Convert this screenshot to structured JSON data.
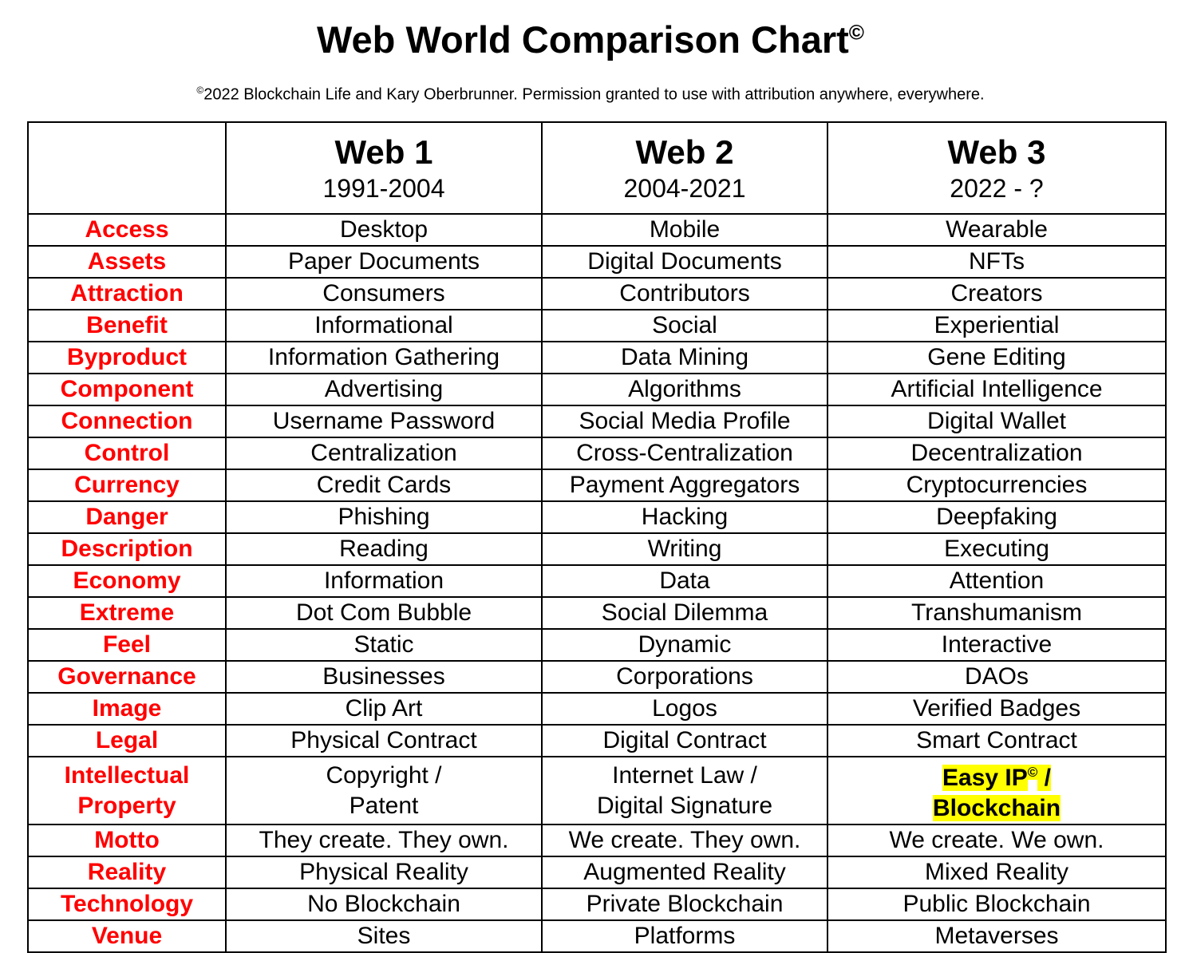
{
  "title": [
    {
      "text": "Web World Comparison Chart"
    },
    {
      "text": "©",
      "sup": true
    }
  ],
  "subtitle": [
    {
      "text": "©",
      "sup": true
    },
    {
      "text": "2022 Blockchain Life and Kary Oberbrunner. Permission granted to use with attribution anywhere, everywhere."
    }
  ],
  "table": {
    "columns": [
      {
        "name": "Web 1",
        "years": "1991-2004"
      },
      {
        "name": "Web 2",
        "years": "2004-2021"
      },
      {
        "name": "Web 3",
        "years": "2022 - ?"
      }
    ],
    "label_color": "#ff0000",
    "rows": [
      {
        "label": "Access",
        "cells": [
          "Desktop",
          "Mobile",
          "Wearable"
        ]
      },
      {
        "label": "Assets",
        "cells": [
          "Paper Documents",
          "Digital Documents",
          "NFTs"
        ]
      },
      {
        "label": "Attraction",
        "cells": [
          "Consumers",
          "Contributors",
          "Creators"
        ]
      },
      {
        "label": "Benefit",
        "cells": [
          "Informational",
          "Social",
          "Experiential"
        ]
      },
      {
        "label": "Byproduct",
        "cells": [
          "Information Gathering",
          "Data Mining",
          "Gene Editing"
        ]
      },
      {
        "label": "Component",
        "cells": [
          "Advertising",
          "Algorithms",
          "Artificial Intelligence"
        ]
      },
      {
        "label": "Connection",
        "cells": [
          "Username Password",
          "Social Media Profile",
          "Digital Wallet"
        ]
      },
      {
        "label": "Control",
        "cells": [
          "Centralization",
          "Cross-Centralization",
          "Decentralization"
        ]
      },
      {
        "label": "Currency",
        "cells": [
          "Credit Cards",
          "Payment Aggregators",
          "Cryptocurrencies"
        ]
      },
      {
        "label": "Danger",
        "cells": [
          "Phishing",
          "Hacking",
          "Deepfaking"
        ]
      },
      {
        "label": "Description",
        "cells": [
          "Reading",
          "Writing",
          "Executing"
        ]
      },
      {
        "label": "Economy",
        "cells": [
          "Information",
          "Data",
          "Attention"
        ]
      },
      {
        "label": "Extreme",
        "cells": [
          "Dot Com Bubble",
          "Social Dilemma",
          "Transhumanism"
        ]
      },
      {
        "label": "Feel",
        "cells": [
          "Static",
          "Dynamic",
          "Interactive"
        ]
      },
      {
        "label": "Governance",
        "cells": [
          "Businesses",
          "Corporations",
          "DAOs"
        ]
      },
      {
        "label": "Image",
        "cells": [
          "Clip Art",
          "Logos",
          "Verified Badges"
        ]
      },
      {
        "label": "Legal",
        "cells": [
          "Physical Contract",
          "Digital Contract",
          "Smart Contract"
        ]
      },
      {
        "label": {
          "lines": [
            "Intellectual",
            "Property"
          ]
        },
        "cells": [
          {
            "lines": [
              "Copyright /",
              "Patent"
            ]
          },
          {
            "lines": [
              "Internet Law /",
              "Digital Signature"
            ]
          },
          {
            "lines": [
              [
                {
                  "text": "Easy IP"
                },
                {
                  "text": "©",
                  "sup": true
                },
                {
                  "text": " /"
                }
              ],
              "Blockchain"
            ],
            "highlight": "#ffff00",
            "bold": true
          }
        ]
      },
      {
        "label": "Motto",
        "cells": [
          "They create. They own.",
          "We create. They own.",
          "We create. We own."
        ]
      },
      {
        "label": "Reality",
        "cells": [
          "Physical Reality",
          "Augmented Reality",
          "Mixed Reality"
        ]
      },
      {
        "label": "Technology",
        "cells": [
          "No Blockchain",
          "Private Blockchain",
          "Public Blockchain"
        ]
      },
      {
        "label": "Venue",
        "cells": [
          "Sites",
          "Platforms",
          "Metaverses"
        ]
      }
    ]
  }
}
